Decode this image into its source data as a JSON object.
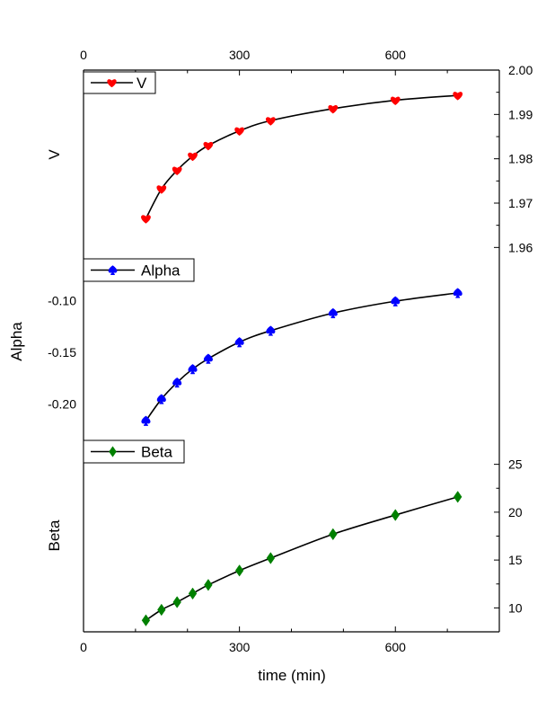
{
  "chart_data": [
    {
      "type": "line",
      "name": "V panel",
      "ylabel": "V",
      "xlim": [
        0,
        800
      ],
      "ylim": [
        1.955,
        2.0
      ],
      "y_axis_side": "right",
      "x_ticks_top": [
        0,
        300,
        600
      ],
      "y_ticks": [
        1.96,
        1.97,
        1.98,
        1.99,
        2.0
      ],
      "y_tick_labels": [
        "1.96",
        "1.97",
        "1.98",
        "1.99",
        "2.00"
      ],
      "legend": {
        "label": "V",
        "position": "top-left"
      },
      "series": [
        {
          "name": "V",
          "color": "#ff0000",
          "marker": "heart",
          "x": [
            120,
            150,
            180,
            210,
            240,
            300,
            360,
            480,
            600,
            720
          ],
          "y": [
            1.9665,
            1.9732,
            1.9774,
            1.9806,
            1.983,
            1.9863,
            1.9886,
            1.9913,
            1.9932,
            1.9943
          ]
        }
      ]
    },
    {
      "type": "line",
      "name": "Alpha panel",
      "ylabel": "Alpha",
      "xlim": [
        0,
        800
      ],
      "ylim": [
        -0.235,
        -0.07
      ],
      "y_axis_side": "left",
      "y_ticks": [
        -0.1,
        -0.15,
        -0.2
      ],
      "y_tick_labels": [
        "-0.10",
        "-0.15",
        "-0.20"
      ],
      "legend": {
        "label": "Alpha",
        "position": "top-left"
      },
      "series": [
        {
          "name": "Alpha",
          "color": "#0000ff",
          "marker": "spade",
          "x": [
            120,
            150,
            180,
            210,
            240,
            300,
            360,
            480,
            600,
            720
          ],
          "y": [
            -0.216,
            -0.195,
            -0.179,
            -0.166,
            -0.156,
            -0.14,
            -0.129,
            -0.112,
            -0.1005,
            -0.0925
          ]
        }
      ]
    },
    {
      "type": "line",
      "name": "Beta panel",
      "ylabel": "Beta",
      "xlabel": "time (min)",
      "xlim": [
        0,
        800
      ],
      "ylim": [
        7.5,
        27.5
      ],
      "y_axis_side": "right",
      "x_ticks_bottom": [
        0,
        300,
        600
      ],
      "y_ticks": [
        10,
        15,
        20,
        25
      ],
      "y_tick_labels": [
        "10",
        "15",
        "20",
        "25"
      ],
      "legend": {
        "label": "Beta",
        "position": "top-left"
      },
      "series": [
        {
          "name": "Beta",
          "color": "#008000",
          "marker": "diamond",
          "x": [
            120,
            150,
            180,
            210,
            240,
            300,
            360,
            480,
            600,
            720
          ],
          "y": [
            8.7,
            9.8,
            10.6,
            11.5,
            12.4,
            13.9,
            15.2,
            17.7,
            19.7,
            21.6
          ]
        }
      ]
    }
  ]
}
